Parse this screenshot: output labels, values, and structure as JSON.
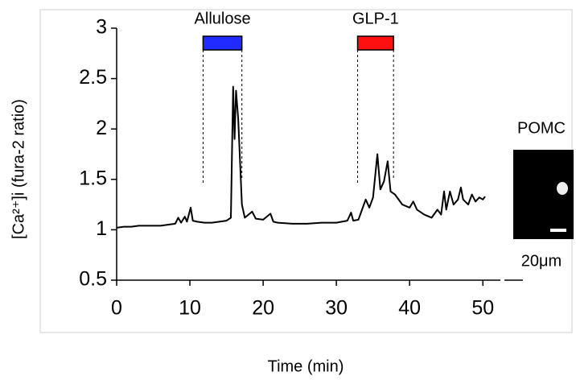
{
  "chart_data": {
    "type": "line",
    "xlabel": "Time (min)",
    "ylabel": "[Ca²⁺]i (fura-2 ratio)",
    "xlim": [
      0,
      52.5
    ],
    "ylim": [
      0.5,
      3
    ],
    "xticks": [
      0,
      10,
      20,
      30,
      40,
      50
    ],
    "yticks": [
      0.5,
      1,
      1.5,
      2,
      2.5,
      3
    ],
    "x": [
      0,
      1,
      2,
      3,
      4,
      5,
      6,
      7,
      8,
      8.4,
      8.8,
      9.3,
      9.6,
      10.1,
      10.4,
      11,
      12,
      13,
      14,
      15,
      15.6,
      15.9,
      16.1,
      16.3,
      16.6,
      16.8,
      17.1,
      17.5,
      18,
      18.5,
      19,
      20,
      21,
      21.4,
      22,
      24,
      26,
      28,
      30,
      31.5,
      32,
      32.3,
      33,
      34,
      34.5,
      35,
      35.6,
      36,
      36.5,
      37,
      37.4,
      38,
      39,
      40,
      40.5,
      41,
      42,
      43,
      43.8,
      44.3,
      44.7,
      45,
      45.5,
      46,
      46.6,
      47,
      47.3,
      48,
      48.5,
      49,
      49.5,
      50,
      50.3
    ],
    "series": [
      {
        "color": "#000000",
        "values": [
          1.02,
          1.03,
          1.03,
          1.04,
          1.04,
          1.04,
          1.04,
          1.05,
          1.06,
          1.12,
          1.07,
          1.13,
          1.08,
          1.22,
          1.09,
          1.08,
          1.07,
          1.07,
          1.08,
          1.09,
          1.12,
          2.42,
          1.9,
          2.38,
          2.1,
          1.75,
          1.25,
          1.12,
          1.15,
          1.18,
          1.11,
          1.1,
          1.16,
          1.08,
          1.07,
          1.06,
          1.06,
          1.07,
          1.07,
          1.09,
          1.17,
          1.09,
          1.1,
          1.3,
          1.22,
          1.32,
          1.75,
          1.4,
          1.48,
          1.68,
          1.38,
          1.35,
          1.25,
          1.22,
          1.28,
          1.2,
          1.15,
          1.12,
          1.2,
          1.15,
          1.38,
          1.2,
          1.38,
          1.25,
          1.3,
          1.42,
          1.3,
          1.25,
          1.35,
          1.28,
          1.32,
          1.3,
          1.33
        ]
      }
    ],
    "periods": [
      {
        "label": "Allulose",
        "start": 11.8,
        "end": 17.1,
        "color": "#1f2bff"
      },
      {
        "label": "GLP-1",
        "start": 32.9,
        "end": 37.8,
        "color": "#ff1010"
      }
    ]
  },
  "inset": {
    "title": "POMC",
    "scale_label": "20μm"
  }
}
